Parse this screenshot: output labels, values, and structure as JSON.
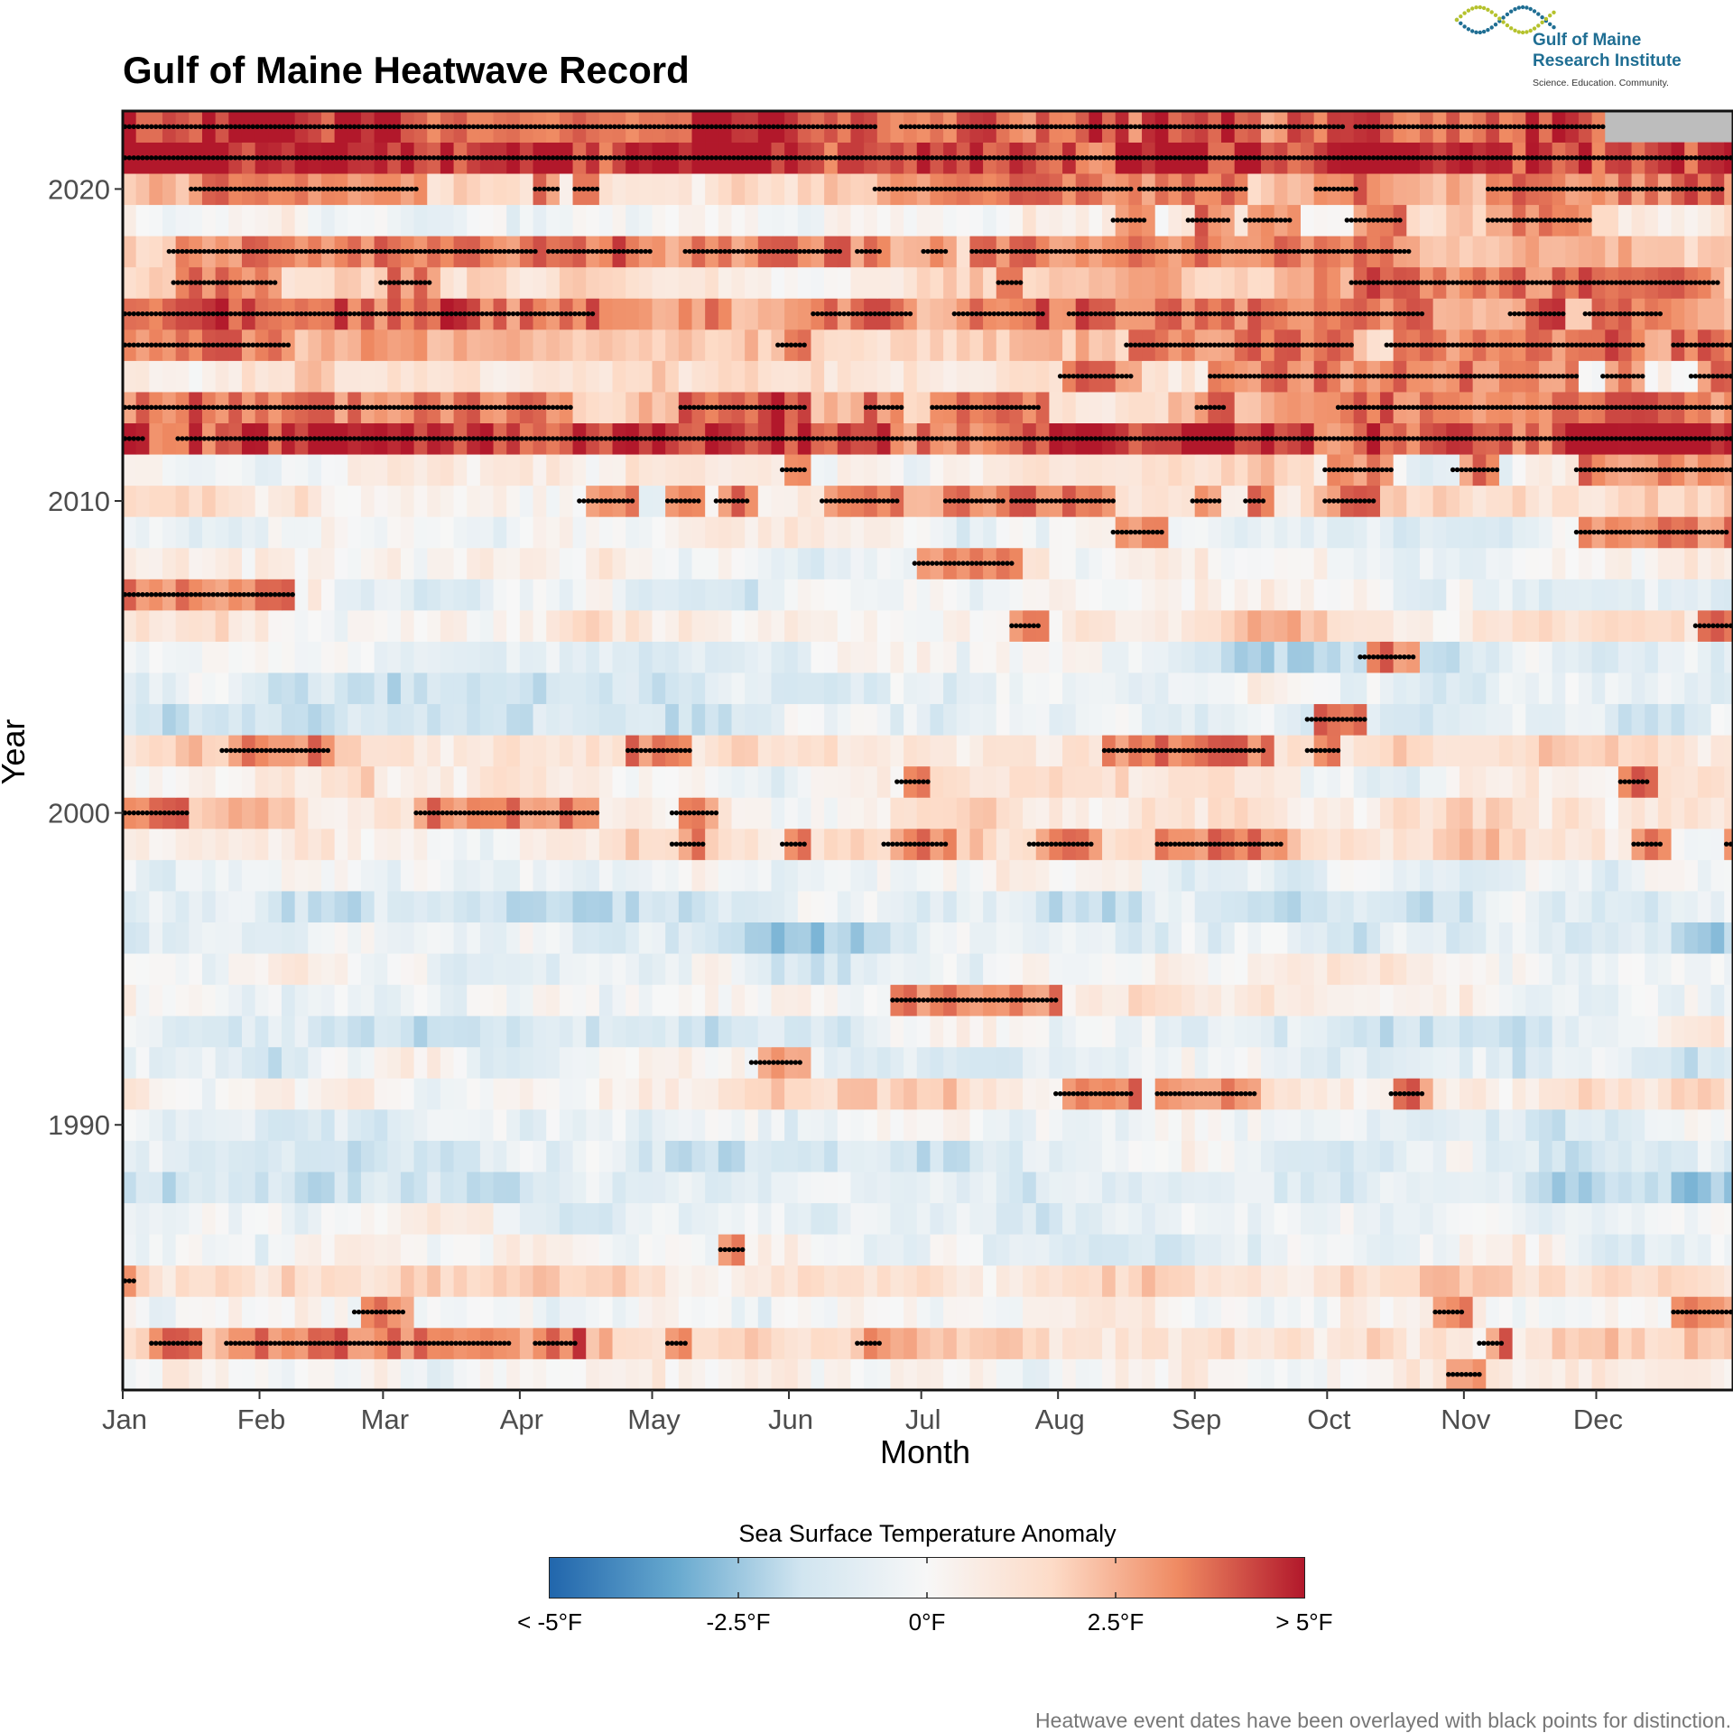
{
  "header": {
    "title": "Gulf of Maine Heatwave Record"
  },
  "logo": {
    "line1": "Gulf of Maine",
    "line2": "Research Institute",
    "tagline": "Science. Education. Community.",
    "colors": [
      "#1f6e93",
      "#b5c22d"
    ]
  },
  "legend": {
    "title": "Sea Surface Temperature Anomaly",
    "labels": [
      "< -5°F",
      "-2.5°F",
      "0°F",
      "2.5°F",
      "> 5°F"
    ],
    "colors": [
      "#2166ac",
      "#67a9cf",
      "#d1e5f0",
      "#f7f7f7",
      "#fddbc7",
      "#ef8a62",
      "#b2182b"
    ]
  },
  "footnote": "Heatwave event dates have been overlayed with black points for distinction.",
  "chart_data": {
    "type": "heatmap",
    "title": "Gulf of Maine Heatwave Record",
    "xlabel": "Month",
    "ylabel": "Year",
    "x_ticks": [
      "Jan",
      "Feb",
      "Mar",
      "Apr",
      "May",
      "Jun",
      "Jul",
      "Aug",
      "Sep",
      "Oct",
      "Nov",
      "Dec"
    ],
    "y_ticks": [
      1990,
      2000,
      2010,
      2020
    ],
    "year_range": [
      1982,
      2022
    ],
    "value_range": [
      -5,
      5
    ],
    "value_unit": "°F",
    "missing_color": "#bdbdbd",
    "missing_data": [
      {
        "year": 2022,
        "from_day": 337,
        "to_day": 365
      }
    ],
    "year_profiles": [
      {
        "year": 1982,
        "base": 0.2
      },
      {
        "year": 1983,
        "base": 1.6
      },
      {
        "year": 1984,
        "base": 0.3
      },
      {
        "year": 1985,
        "base": 1.4
      },
      {
        "year": 1986,
        "base": -0.2
      },
      {
        "year": 1987,
        "base": -0.6
      },
      {
        "year": 1988,
        "base": -1.5
      },
      {
        "year": 1989,
        "base": -0.7
      },
      {
        "year": 1990,
        "base": -0.3
      },
      {
        "year": 1991,
        "base": 0.6
      },
      {
        "year": 1992,
        "base": -0.9
      },
      {
        "year": 1993,
        "base": -0.5
      },
      {
        "year": 1994,
        "base": 0.1
      },
      {
        "year": 1995,
        "base": -0.1
      },
      {
        "year": 1996,
        "base": -1.0
      },
      {
        "year": 1997,
        "base": -0.9
      },
      {
        "year": 1998,
        "base": -0.1
      },
      {
        "year": 1999,
        "base": 1.2
      },
      {
        "year": 2000,
        "base": 1.0
      },
      {
        "year": 2001,
        "base": 0.2
      },
      {
        "year": 2002,
        "base": 1.4
      },
      {
        "year": 2003,
        "base": -0.9
      },
      {
        "year": 2004,
        "base": -1.1
      },
      {
        "year": 2005,
        "base": -0.7
      },
      {
        "year": 2006,
        "base": 1.0
      },
      {
        "year": 2007,
        "base": -0.6
      },
      {
        "year": 2008,
        "base": 0.2
      },
      {
        "year": 2009,
        "base": -0.4
      },
      {
        "year": 2010,
        "base": 1.3
      },
      {
        "year": 2011,
        "base": 0.8
      },
      {
        "year": 2012,
        "base": 3.6
      },
      {
        "year": 2013,
        "base": 2.0
      },
      {
        "year": 2014,
        "base": 1.2
      },
      {
        "year": 2015,
        "base": 1.8
      },
      {
        "year": 2016,
        "base": 2.4
      },
      {
        "year": 2017,
        "base": 1.6
      },
      {
        "year": 2018,
        "base": 2.0
      },
      {
        "year": 2019,
        "base": 0.2
      },
      {
        "year": 2020,
        "base": 2.0
      },
      {
        "year": 2021,
        "base": 3.8
      },
      {
        "year": 2022,
        "base": 3.2
      }
    ],
    "heatwave_events": [
      {
        "year": 1982,
        "segments": [
          [
            301,
            308
          ]
        ]
      },
      {
        "year": 1983,
        "segments": [
          [
            7,
            18
          ],
          [
            24,
            88
          ],
          [
            94,
            103
          ],
          [
            124,
            128
          ],
          [
            167,
            172
          ],
          [
            308,
            313
          ]
        ]
      },
      {
        "year": 1984,
        "segments": [
          [
            53,
            64
          ],
          [
            298,
            304
          ],
          [
            352,
            365
          ]
        ]
      },
      {
        "year": 1985,
        "segments": [
          [
            1,
            3
          ]
        ]
      },
      {
        "year": 1986,
        "segments": [
          [
            136,
            141
          ]
        ]
      },
      {
        "year": 1991,
        "segments": [
          [
            212,
            229
          ],
          [
            235,
            257
          ],
          [
            288,
            295
          ]
        ]
      },
      {
        "year": 1992,
        "segments": [
          [
            143,
            154
          ]
        ]
      },
      {
        "year": 1994,
        "segments": [
          [
            175,
            212
          ]
        ]
      },
      {
        "year": 1999,
        "segments": [
          [
            125,
            132
          ],
          [
            150,
            155
          ],
          [
            173,
            187
          ],
          [
            206,
            220
          ],
          [
            235,
            263
          ],
          [
            343,
            349
          ],
          [
            364,
            365
          ]
        ]
      },
      {
        "year": 2000,
        "segments": [
          [
            1,
            15
          ],
          [
            67,
            108
          ],
          [
            125,
            135
          ]
        ]
      },
      {
        "year": 2001,
        "segments": [
          [
            176,
            183
          ],
          [
            340,
            346
          ]
        ]
      },
      {
        "year": 2002,
        "segments": [
          [
            23,
            47
          ],
          [
            115,
            129
          ],
          [
            223,
            246
          ],
          [
            246,
            259
          ],
          [
            269,
            276
          ]
        ]
      },
      {
        "year": 2003,
        "segments": [
          [
            269,
            282
          ]
        ]
      },
      {
        "year": 2005,
        "segments": [
          [
            281,
            293
          ]
        ]
      },
      {
        "year": 2006,
        "segments": [
          [
            202,
            208
          ],
          [
            357,
            365
          ]
        ]
      },
      {
        "year": 2007,
        "segments": [
          [
            1,
            39
          ]
        ]
      },
      {
        "year": 2008,
        "segments": [
          [
            180,
            202
          ]
        ]
      },
      {
        "year": 2009,
        "segments": [
          [
            225,
            236
          ],
          [
            330,
            364
          ]
        ]
      },
      {
        "year": 2010,
        "segments": [
          [
            104,
            116
          ],
          [
            124,
            131
          ],
          [
            135,
            142
          ],
          [
            159,
            176
          ],
          [
            187,
            200
          ],
          [
            202,
            225
          ],
          [
            243,
            249
          ],
          [
            255,
            259
          ],
          [
            273,
            284
          ]
        ]
      },
      {
        "year": 2011,
        "segments": [
          [
            150,
            155
          ],
          [
            273,
            288
          ],
          [
            302,
            312
          ],
          [
            330,
            365
          ]
        ]
      },
      {
        "year": 2012,
        "segments": [
          [
            1,
            5
          ],
          [
            13,
            365
          ]
        ]
      },
      {
        "year": 2013,
        "segments": [
          [
            1,
            102
          ],
          [
            127,
            155
          ],
          [
            169,
            177
          ],
          [
            184,
            208
          ],
          [
            244,
            250
          ],
          [
            276,
            365
          ]
        ]
      },
      {
        "year": 2014,
        "segments": [
          [
            213,
            229
          ],
          [
            247,
            330
          ],
          [
            336,
            345
          ],
          [
            356,
            365
          ]
        ]
      },
      {
        "year": 2015,
        "segments": [
          [
            1,
            38
          ],
          [
            149,
            155
          ],
          [
            228,
            279
          ],
          [
            287,
            345
          ],
          [
            352,
            365
          ]
        ]
      },
      {
        "year": 2016,
        "segments": [
          [
            1,
            107
          ],
          [
            157,
            179
          ],
          [
            189,
            209
          ],
          [
            215,
            295
          ],
          [
            315,
            327
          ],
          [
            332,
            349
          ]
        ]
      },
      {
        "year": 2017,
        "segments": [
          [
            12,
            35
          ],
          [
            59,
            70
          ],
          [
            199,
            204
          ],
          [
            279,
            362
          ]
        ]
      },
      {
        "year": 2018,
        "segments": [
          [
            11,
            94
          ],
          [
            97,
            120
          ],
          [
            128,
            163
          ],
          [
            167,
            172
          ],
          [
            182,
            187
          ],
          [
            193,
            292
          ]
        ]
      },
      {
        "year": 2019,
        "segments": [
          [
            225,
            232
          ],
          [
            242,
            251
          ],
          [
            255,
            265
          ],
          [
            278,
            290
          ],
          [
            310,
            333
          ]
        ]
      },
      {
        "year": 2020,
        "segments": [
          [
            16,
            67
          ],
          [
            94,
            99
          ],
          [
            103,
            108
          ],
          [
            171,
            229
          ],
          [
            231,
            255
          ],
          [
            271,
            280
          ],
          [
            310,
            363
          ]
        ]
      },
      {
        "year": 2021,
        "segments": [
          [
            1,
            365
          ]
        ]
      },
      {
        "year": 2022,
        "segments": [
          [
            1,
            171
          ],
          [
            177,
            277
          ],
          [
            280,
            336
          ]
        ]
      }
    ]
  }
}
